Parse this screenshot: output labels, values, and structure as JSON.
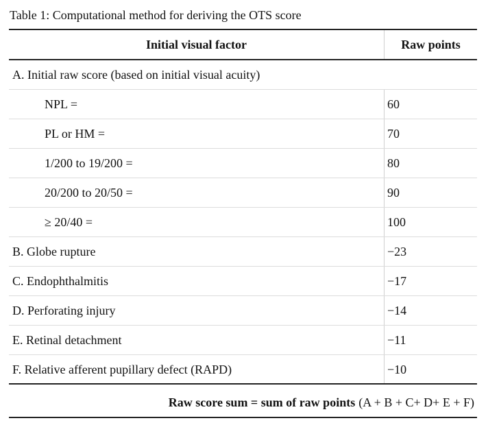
{
  "caption": "Table 1: Computational method for deriving the OTS score",
  "table": {
    "headers": {
      "factor": "Initial visual factor",
      "points": "Raw points"
    },
    "section_a": "A. Initial raw score (based on initial visual acuity)",
    "sub_rows": [
      {
        "factor": "NPL =",
        "points": "60"
      },
      {
        "factor": "PL or HM =",
        "points": "70"
      },
      {
        "factor": "1/200 to 19/200 =",
        "points": "80"
      },
      {
        "factor": "20/200 to 20/50 =",
        "points": "90"
      },
      {
        "factor": "≥ 20/40 =",
        "points": "100"
      }
    ],
    "rows": [
      {
        "factor": "B. Globe rupture",
        "points": "−23"
      },
      {
        "factor": "C. Endophthalmitis",
        "points": "−17"
      },
      {
        "factor": "D. Perforating injury",
        "points": "−14"
      },
      {
        "factor": "E. Retinal detachment",
        "points": "−11"
      },
      {
        "factor": "F. Relative afferent pupillary defect (RAPD)",
        "points": "−10"
      }
    ]
  },
  "footer": {
    "bold": "Raw score sum = sum of raw points",
    "formula": "(A + B + C+ D+ E + F)"
  }
}
